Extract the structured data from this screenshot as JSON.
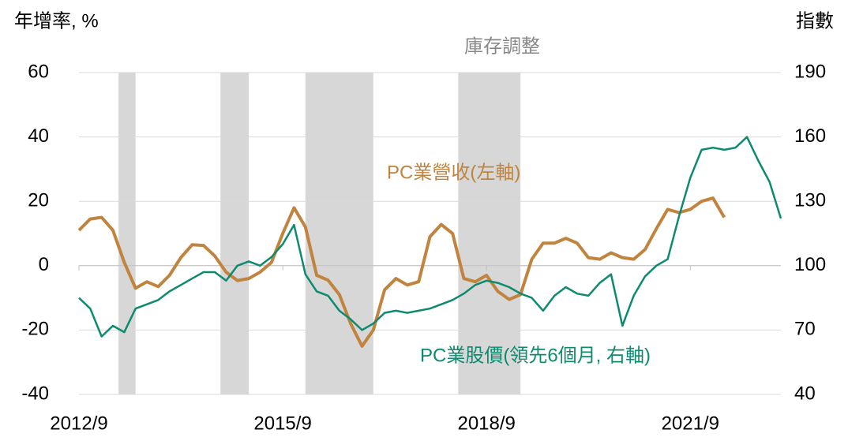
{
  "chart_data": {
    "type": "line",
    "y_label": "年增率, %",
    "y2_label": "指數",
    "xlim": [
      "2012/9",
      "2023/1"
    ],
    "xticks": [
      "2012/9",
      "2015/9",
      "2018/9",
      "2021/9"
    ],
    "ylim": [
      -40,
      60
    ],
    "yticks": [
      -40,
      -20,
      0,
      20,
      40,
      60
    ],
    "y2lim": [
      40,
      190
    ],
    "y2ticks": [
      40,
      70,
      100,
      130,
      160,
      190
    ],
    "grid": true,
    "shaded_label": "庫存調整",
    "shaded_color": "#d0d0d0",
    "shaded": [
      {
        "start": "2013/4",
        "end": "2013/7"
      },
      {
        "start": "2014/10",
        "end": "2015/3"
      },
      {
        "start": "2016/1",
        "end": "2017/1"
      },
      {
        "start": "2018/4",
        "end": "2019/3"
      }
    ],
    "series": [
      {
        "name": "PC業營收(左軸)",
        "color": "#c0843f",
        "axis": "y",
        "x": [
          "2012/9",
          "2012/11",
          "2013/1",
          "2013/3",
          "2013/5",
          "2013/7",
          "2013/9",
          "2013/11",
          "2014/1",
          "2014/3",
          "2014/5",
          "2014/7",
          "2014/9",
          "2014/11",
          "2015/1",
          "2015/3",
          "2015/5",
          "2015/7",
          "2015/9",
          "2015/11",
          "2016/1",
          "2016/3",
          "2016/5",
          "2016/7",
          "2016/9",
          "2016/11",
          "2017/1",
          "2017/3",
          "2017/5",
          "2017/7",
          "2017/9",
          "2017/11",
          "2018/1",
          "2018/3",
          "2018/5",
          "2018/7",
          "2018/9",
          "2018/11",
          "2019/1",
          "2019/3",
          "2019/5",
          "2019/7",
          "2019/9",
          "2019/11",
          "2020/1",
          "2020/3",
          "2020/5",
          "2020/7",
          "2020/9",
          "2020/11",
          "2021/1",
          "2021/3",
          "2021/5",
          "2021/7",
          "2021/9",
          "2021/11",
          "2022/1",
          "2022/3"
        ],
        "values": [
          11,
          14.5,
          15,
          11,
          1,
          -7,
          -5,
          -6.5,
          -3,
          2.5,
          6.5,
          6.3,
          3,
          -2,
          -4.6,
          -4,
          -2,
          1,
          10,
          18,
          12,
          -3,
          -4.5,
          -9,
          -18,
          -25,
          -20,
          -7.5,
          -4,
          -6,
          -5,
          9,
          12.8,
          10,
          -4,
          -5,
          -3,
          -8,
          -10.5,
          -9,
          2,
          7,
          7,
          8.5,
          7,
          2.5,
          2,
          4,
          2.5,
          2,
          5,
          11.5,
          17.5,
          16.5,
          17.5,
          20,
          21,
          15
        ]
      },
      {
        "name": "PC業股價(領先6個月, 右軸)",
        "color": "#0e8a6e",
        "axis": "y2",
        "x": [
          "2012/9",
          "2012/11",
          "2013/1",
          "2013/3",
          "2013/5",
          "2013/7",
          "2013/9",
          "2013/11",
          "2014/1",
          "2014/3",
          "2014/5",
          "2014/7",
          "2014/9",
          "2014/11",
          "2015/1",
          "2015/3",
          "2015/5",
          "2015/7",
          "2015/9",
          "2015/11",
          "2016/1",
          "2016/3",
          "2016/5",
          "2016/7",
          "2016/9",
          "2016/11",
          "2017/1",
          "2017/3",
          "2017/5",
          "2017/7",
          "2017/9",
          "2017/11",
          "2018/1",
          "2018/3",
          "2018/5",
          "2018/7",
          "2018/9",
          "2018/11",
          "2019/1",
          "2019/3",
          "2019/5",
          "2019/7",
          "2019/9",
          "2019/11",
          "2020/1",
          "2020/3",
          "2020/5",
          "2020/7",
          "2020/9",
          "2020/11",
          "2021/1",
          "2021/3",
          "2021/5",
          "2021/7",
          "2021/9",
          "2021/11",
          "2022/1",
          "2022/3",
          "2022/5",
          "2022/7",
          "2022/9",
          "2022/11",
          "2023/1"
        ],
        "values": [
          85,
          80,
          67,
          72,
          69,
          80,
          82,
          84,
          88,
          91,
          94,
          97,
          97,
          93,
          100,
          102,
          100,
          104,
          110,
          119,
          96,
          88,
          86,
          79,
          75,
          70,
          73,
          78,
          79,
          78,
          79,
          80,
          82,
          84,
          87,
          91,
          93,
          92,
          90,
          87,
          85,
          79,
          86,
          90,
          87,
          86,
          92,
          96,
          72,
          86,
          95,
          100,
          103,
          123,
          141,
          154,
          155,
          154,
          155,
          160,
          149,
          139,
          122
        ]
      }
    ]
  }
}
